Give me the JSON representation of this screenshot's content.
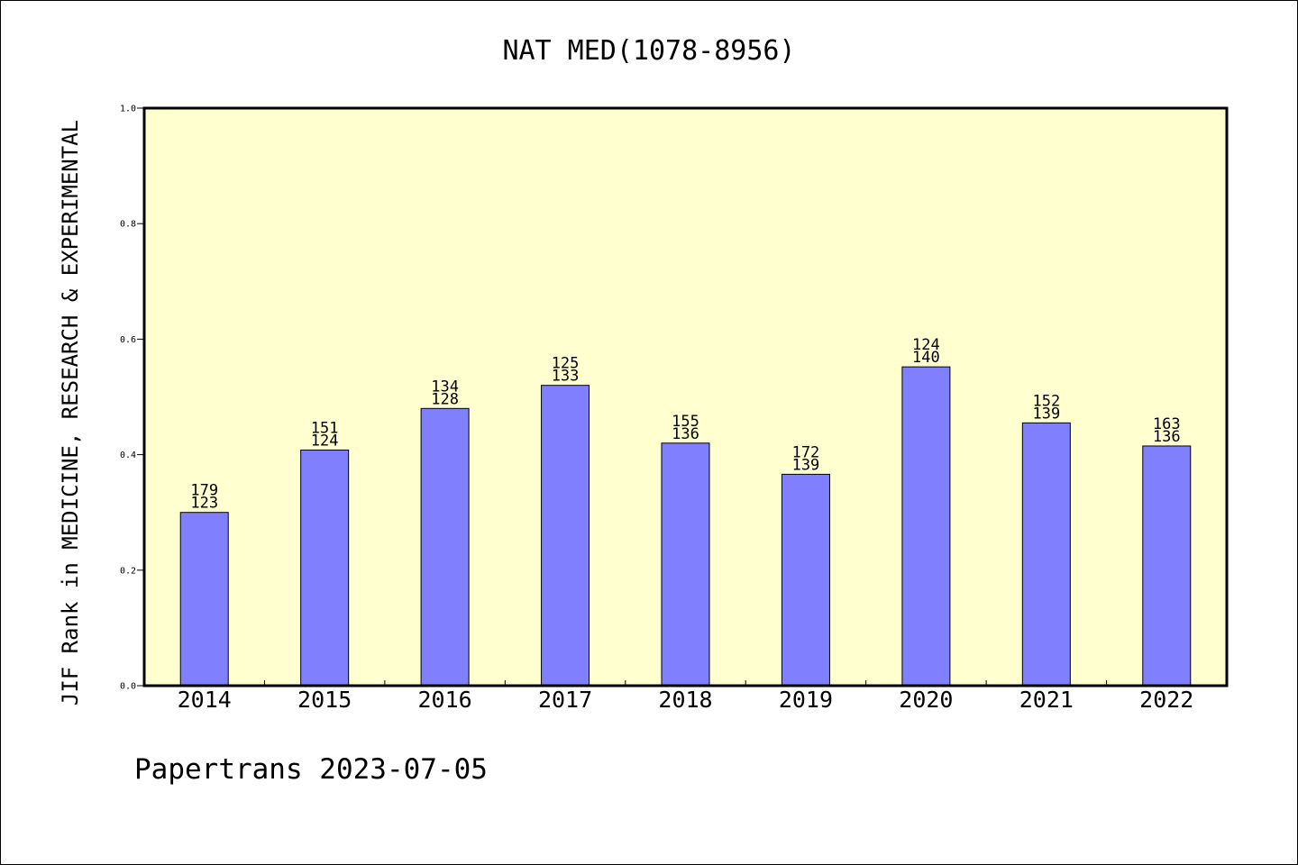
{
  "chart_data": {
    "type": "bar",
    "title": "NAT MED(1078-8956)",
    "xlabel": "",
    "ylabel": "JIF Rank in MEDICINE, RESEARCH & EXPERIMENTAL",
    "ylim": [
      0.0,
      1.0
    ],
    "yticks": [
      "0.0",
      "0.2",
      "0.4",
      "0.6",
      "0.8",
      "1.0"
    ],
    "categories": [
      "2014",
      "2015",
      "2016",
      "2017",
      "2018",
      "2019",
      "2020",
      "2021",
      "2022"
    ],
    "values": [
      0.3,
      0.408,
      0.48,
      0.52,
      0.42,
      0.366,
      0.552,
      0.455,
      0.415
    ],
    "labels_top": [
      "179",
      "151",
      "134",
      "125",
      "155",
      "172",
      "124",
      "152",
      "163"
    ],
    "labels_bottom": [
      "123",
      "124",
      "128",
      "133",
      "136",
      "139",
      "140",
      "139",
      "136"
    ],
    "grid": false,
    "legend": "none",
    "colors": {
      "bar": "#8080ff",
      "plot_bg": "#ffffd0",
      "edge": "#000000"
    }
  },
  "footer": {
    "text": "Papertrans 2023-07-05"
  }
}
